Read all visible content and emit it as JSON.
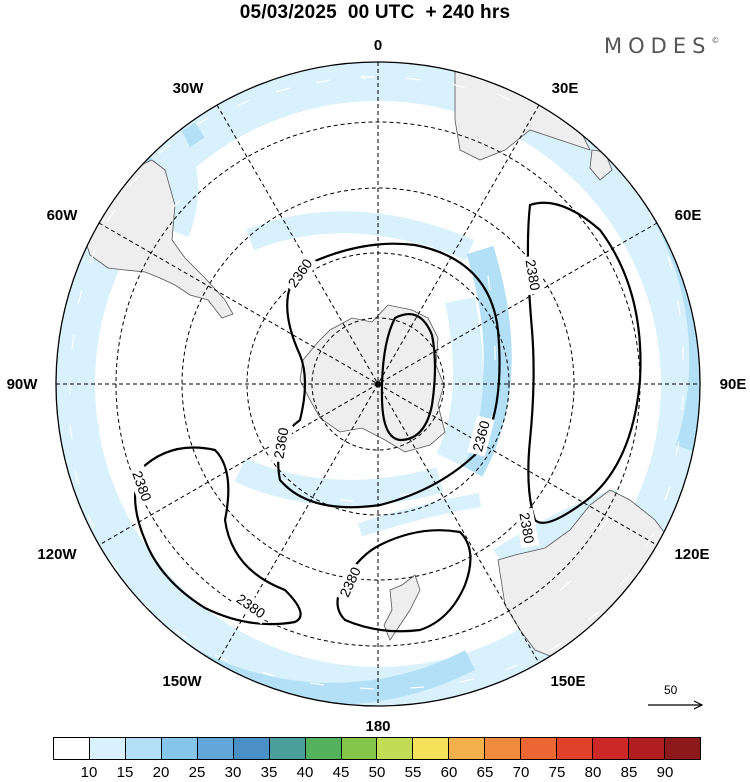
{
  "header": {
    "date": "05/03/2025",
    "time": "00 UTC",
    "lead": "+ 240 hrs"
  },
  "brand": "MODES",
  "brand_mark": "©",
  "map": {
    "projection": "south-polar-stereographic",
    "longitude_labels": [
      "0",
      "30E",
      "60E",
      "90E",
      "120E",
      "150E",
      "180",
      "150W",
      "120W",
      "90W",
      "60W",
      "30W"
    ],
    "contour_labels": [
      "2360",
      "2360",
      "2360",
      "2380",
      "2380",
      "2380",
      "2380",
      "2380"
    ],
    "colors": {
      "land": "#eeeeee",
      "wind_light": "#d9f1fc",
      "wind_mid": "#b3e0f6",
      "grid": "#000000"
    }
  },
  "reference_vector": {
    "label": "50"
  },
  "colorbar": {
    "ticks": [
      "10",
      "15",
      "20",
      "25",
      "30",
      "35",
      "40",
      "45",
      "50",
      "55",
      "60",
      "65",
      "70",
      "75",
      "80",
      "85",
      "90"
    ],
    "colors": [
      "#ffffff",
      "#d9f1fc",
      "#b3e0f6",
      "#86c5ea",
      "#62a6da",
      "#4a8fc6",
      "#4a9e9b",
      "#54b25c",
      "#84c54a",
      "#c4dc55",
      "#f6e25a",
      "#f4b04a",
      "#f08a3c",
      "#ec6633",
      "#e0412b",
      "#cc2828",
      "#b01e22",
      "#8c1a1a"
    ]
  }
}
